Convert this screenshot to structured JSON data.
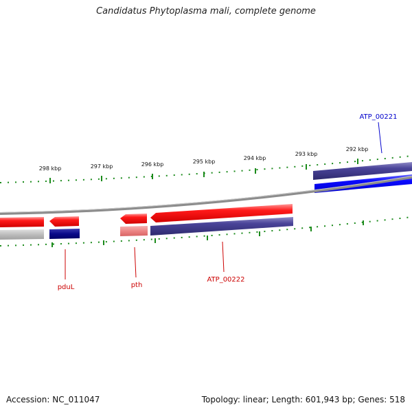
{
  "title": "Candidatus Phytoplasma mali, complete genome",
  "accession": "Accession: NC_011047",
  "summary": "Topology: linear; Length: 601,943 bp; Genes: 518",
  "ticks": [
    "298 kbp",
    "297 kbp",
    "296 kbp",
    "295 kbp",
    "294 kbp",
    "293 kbp",
    "292 kbp"
  ],
  "genes": [
    {
      "name": "pduL",
      "color": "#cc0000"
    },
    {
      "name": "pth",
      "color": "#cc0000"
    },
    {
      "name": "ATP_00222",
      "color": "#cc0000"
    },
    {
      "name": "ATP_00221",
      "color": "#0000cc"
    }
  ],
  "colors": {
    "forward_cds": "#ff0000",
    "reverse_cds": "#0000ff",
    "feature_dark": "#3b3683",
    "backbone": "#888888",
    "tick": "#1a8a1a"
  }
}
